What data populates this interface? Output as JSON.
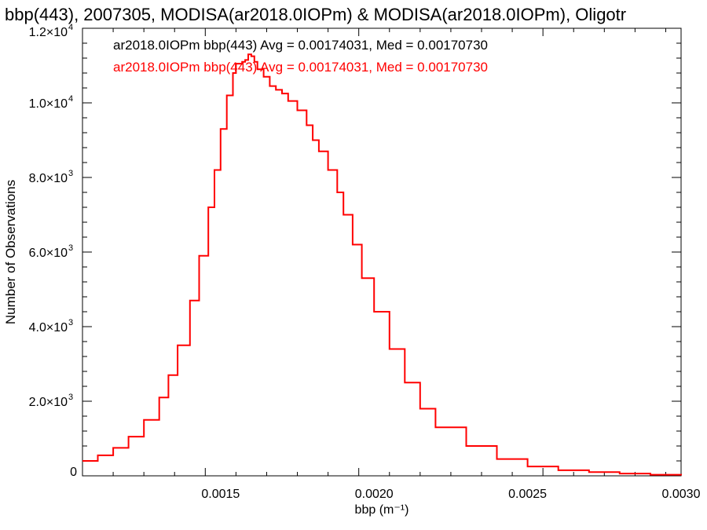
{
  "chart_data": {
    "type": "line",
    "title": "bbp(443), 2007305, MODISA(ar2018.0IOPm) & MODISA(ar2018.0IOPm), Oligotr",
    "xlabel": "bbp (m⁻¹)",
    "ylabel": "Number of Observations",
    "xlim": [
      0.00105,
      0.003
    ],
    "ylim": [
      0,
      12000
    ],
    "x_ticks": [
      "0.0015",
      "0.0020",
      "0.0025",
      "0.0030"
    ],
    "y_ticks": [
      {
        "value": 0,
        "mantissa": "0",
        "exp": ""
      },
      {
        "value": 2000,
        "mantissa": "2.0×10",
        "exp": "3"
      },
      {
        "value": 4000,
        "mantissa": "4.0×10",
        "exp": "3"
      },
      {
        "value": 6000,
        "mantissa": "6.0×10",
        "exp": "3"
      },
      {
        "value": 8000,
        "mantissa": "8.0×10",
        "exp": "3"
      },
      {
        "value": 10000,
        "mantissa": "1.0×10",
        "exp": "4"
      },
      {
        "value": 12000,
        "mantissa": "1.2×10",
        "exp": "4"
      }
    ],
    "grid": false,
    "legend_position": "top-left",
    "legend": [
      {
        "text": "ar2018.0IOPm bbp(443) Avg = 0.00174031, Med = 0.00170730",
        "color": "#000000"
      },
      {
        "text": "ar2018.0IOPm bbp(443) Avg = 0.00174031, Med = 0.00170730",
        "color": "#ff0000"
      }
    ],
    "series": [
      {
        "color": "#ff0000",
        "style": "step",
        "x": [
          0.00105,
          0.0011,
          0.00115,
          0.0012,
          0.00125,
          0.0013,
          0.00133,
          0.00136,
          0.0014,
          0.00143,
          0.00146,
          0.00148,
          0.0015,
          0.00152,
          0.00154,
          0.00155,
          0.00157,
          0.00158,
          0.00159,
          0.0016,
          0.00161,
          0.00162,
          0.00164,
          0.00166,
          0.00168,
          0.0017,
          0.00172,
          0.00175,
          0.00178,
          0.0018,
          0.00182,
          0.00185,
          0.00188,
          0.0019,
          0.00193,
          0.00196,
          0.002,
          0.00205,
          0.0021,
          0.00215,
          0.0022,
          0.0023,
          0.0024,
          0.0025,
          0.0026,
          0.0027,
          0.0028,
          0.0029,
          0.003
        ],
        "y": [
          400,
          550,
          750,
          1050,
          1500,
          2100,
          2700,
          3500,
          4700,
          5900,
          7200,
          8200,
          9300,
          10200,
          10800,
          11050,
          11100,
          11150,
          11300,
          11250,
          11100,
          10900,
          10700,
          10450,
          10350,
          10250,
          10050,
          9800,
          9400,
          9000,
          8700,
          8200,
          7600,
          7000,
          6200,
          5300,
          4400,
          3400,
          2500,
          1800,
          1300,
          800,
          450,
          250,
          150,
          100,
          60,
          30,
          10
        ]
      }
    ]
  }
}
